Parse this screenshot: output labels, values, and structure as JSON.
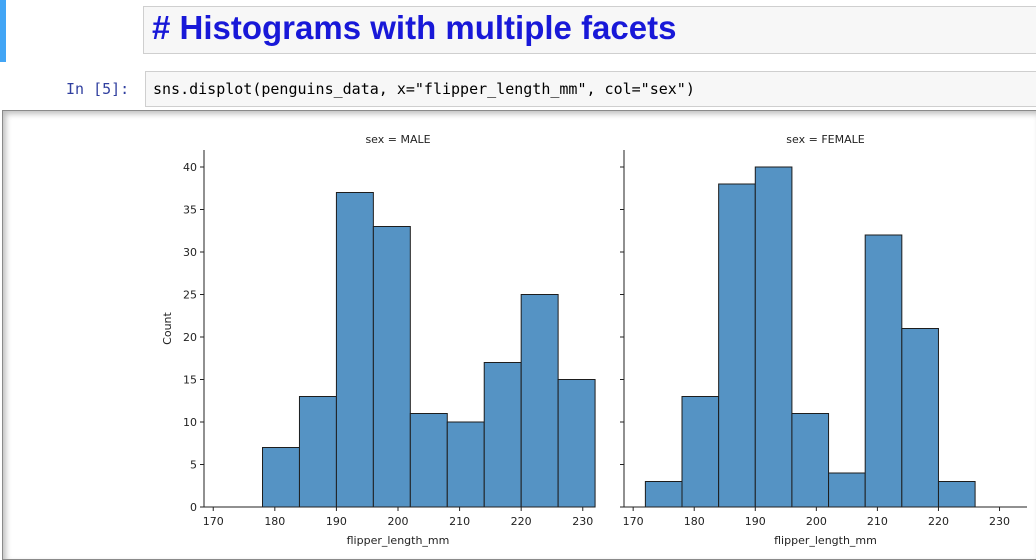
{
  "markdown_cell": {
    "title": "# Histograms with multiple facets"
  },
  "code_cell": {
    "prompt": "In [5]:",
    "code": "sns.displot(penguins_data, x=\"flipper_length_mm\", col=\"sex\")"
  },
  "colors": {
    "bar_fill": "#5593c4",
    "bar_edge": "#1d1d1d",
    "title_color": "#1818d8",
    "prompt_color": "#303f9f"
  },
  "chart_data": [
    {
      "type": "bar",
      "title": "sex = MALE",
      "xlabel": "flipper_length_mm",
      "ylabel": "Count",
      "xlim": [
        168.5,
        231.5
      ],
      "ylim": [
        0,
        42
      ],
      "xticks": [
        170,
        180,
        190,
        200,
        210,
        220,
        230
      ],
      "yticks": [
        0,
        5,
        10,
        15,
        20,
        25,
        30,
        35,
        40
      ],
      "bin_edges": [
        178,
        184,
        190,
        196,
        202,
        208,
        214,
        220,
        226,
        232
      ],
      "values": [
        7,
        13,
        37,
        33,
        11,
        10,
        17,
        25,
        15
      ]
    },
    {
      "type": "bar",
      "title": "sex = FEMALE",
      "xlabel": "flipper_length_mm",
      "ylabel": "",
      "xlim": [
        168.5,
        234.5
      ],
      "ylim": [
        0,
        42
      ],
      "xticks": [
        170,
        180,
        190,
        200,
        210,
        220,
        230
      ],
      "yticks": [
        0,
        5,
        10,
        15,
        20,
        25,
        30,
        35,
        40
      ],
      "bin_edges": [
        172,
        178,
        184,
        190,
        196,
        202,
        208,
        214,
        220,
        226
      ],
      "values": [
        3,
        13,
        38,
        40,
        11,
        4,
        32,
        21,
        3
      ]
    }
  ]
}
